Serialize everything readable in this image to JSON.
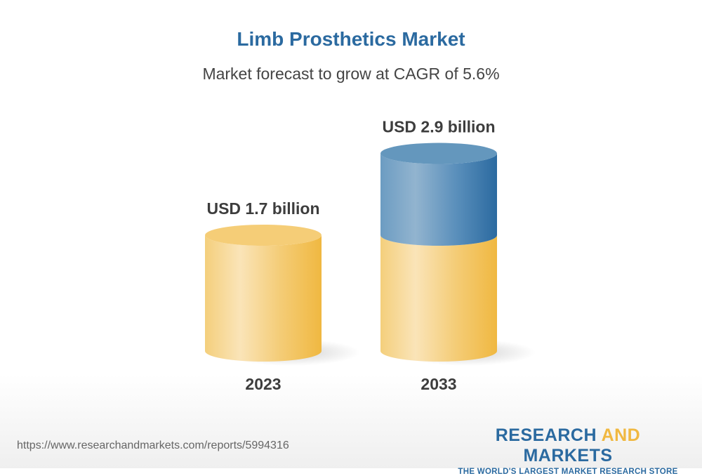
{
  "chart_data": {
    "type": "bar",
    "title": "Limb Prosthetics Market",
    "subtitle": "Market forecast to grow at CAGR of 5.6%",
    "categories": [
      "2023",
      "2033"
    ],
    "values": [
      1.7,
      2.9
    ],
    "data_labels": [
      "USD 1.7 billion",
      "USD 2.9 billion"
    ],
    "unit": "USD billion",
    "style": "3d-cylinder",
    "colors": {
      "base": "#f0b841",
      "growth": "#2b6aa0"
    }
  },
  "footer": {
    "url": "https://www.researchandmarkets.com/reports/5994316",
    "logo_part1": "RESEARCH ",
    "logo_part2": "AND",
    "logo_part3": " MARKETS",
    "tagline": "THE WORLD'S LARGEST MARKET RESEARCH STORE"
  }
}
